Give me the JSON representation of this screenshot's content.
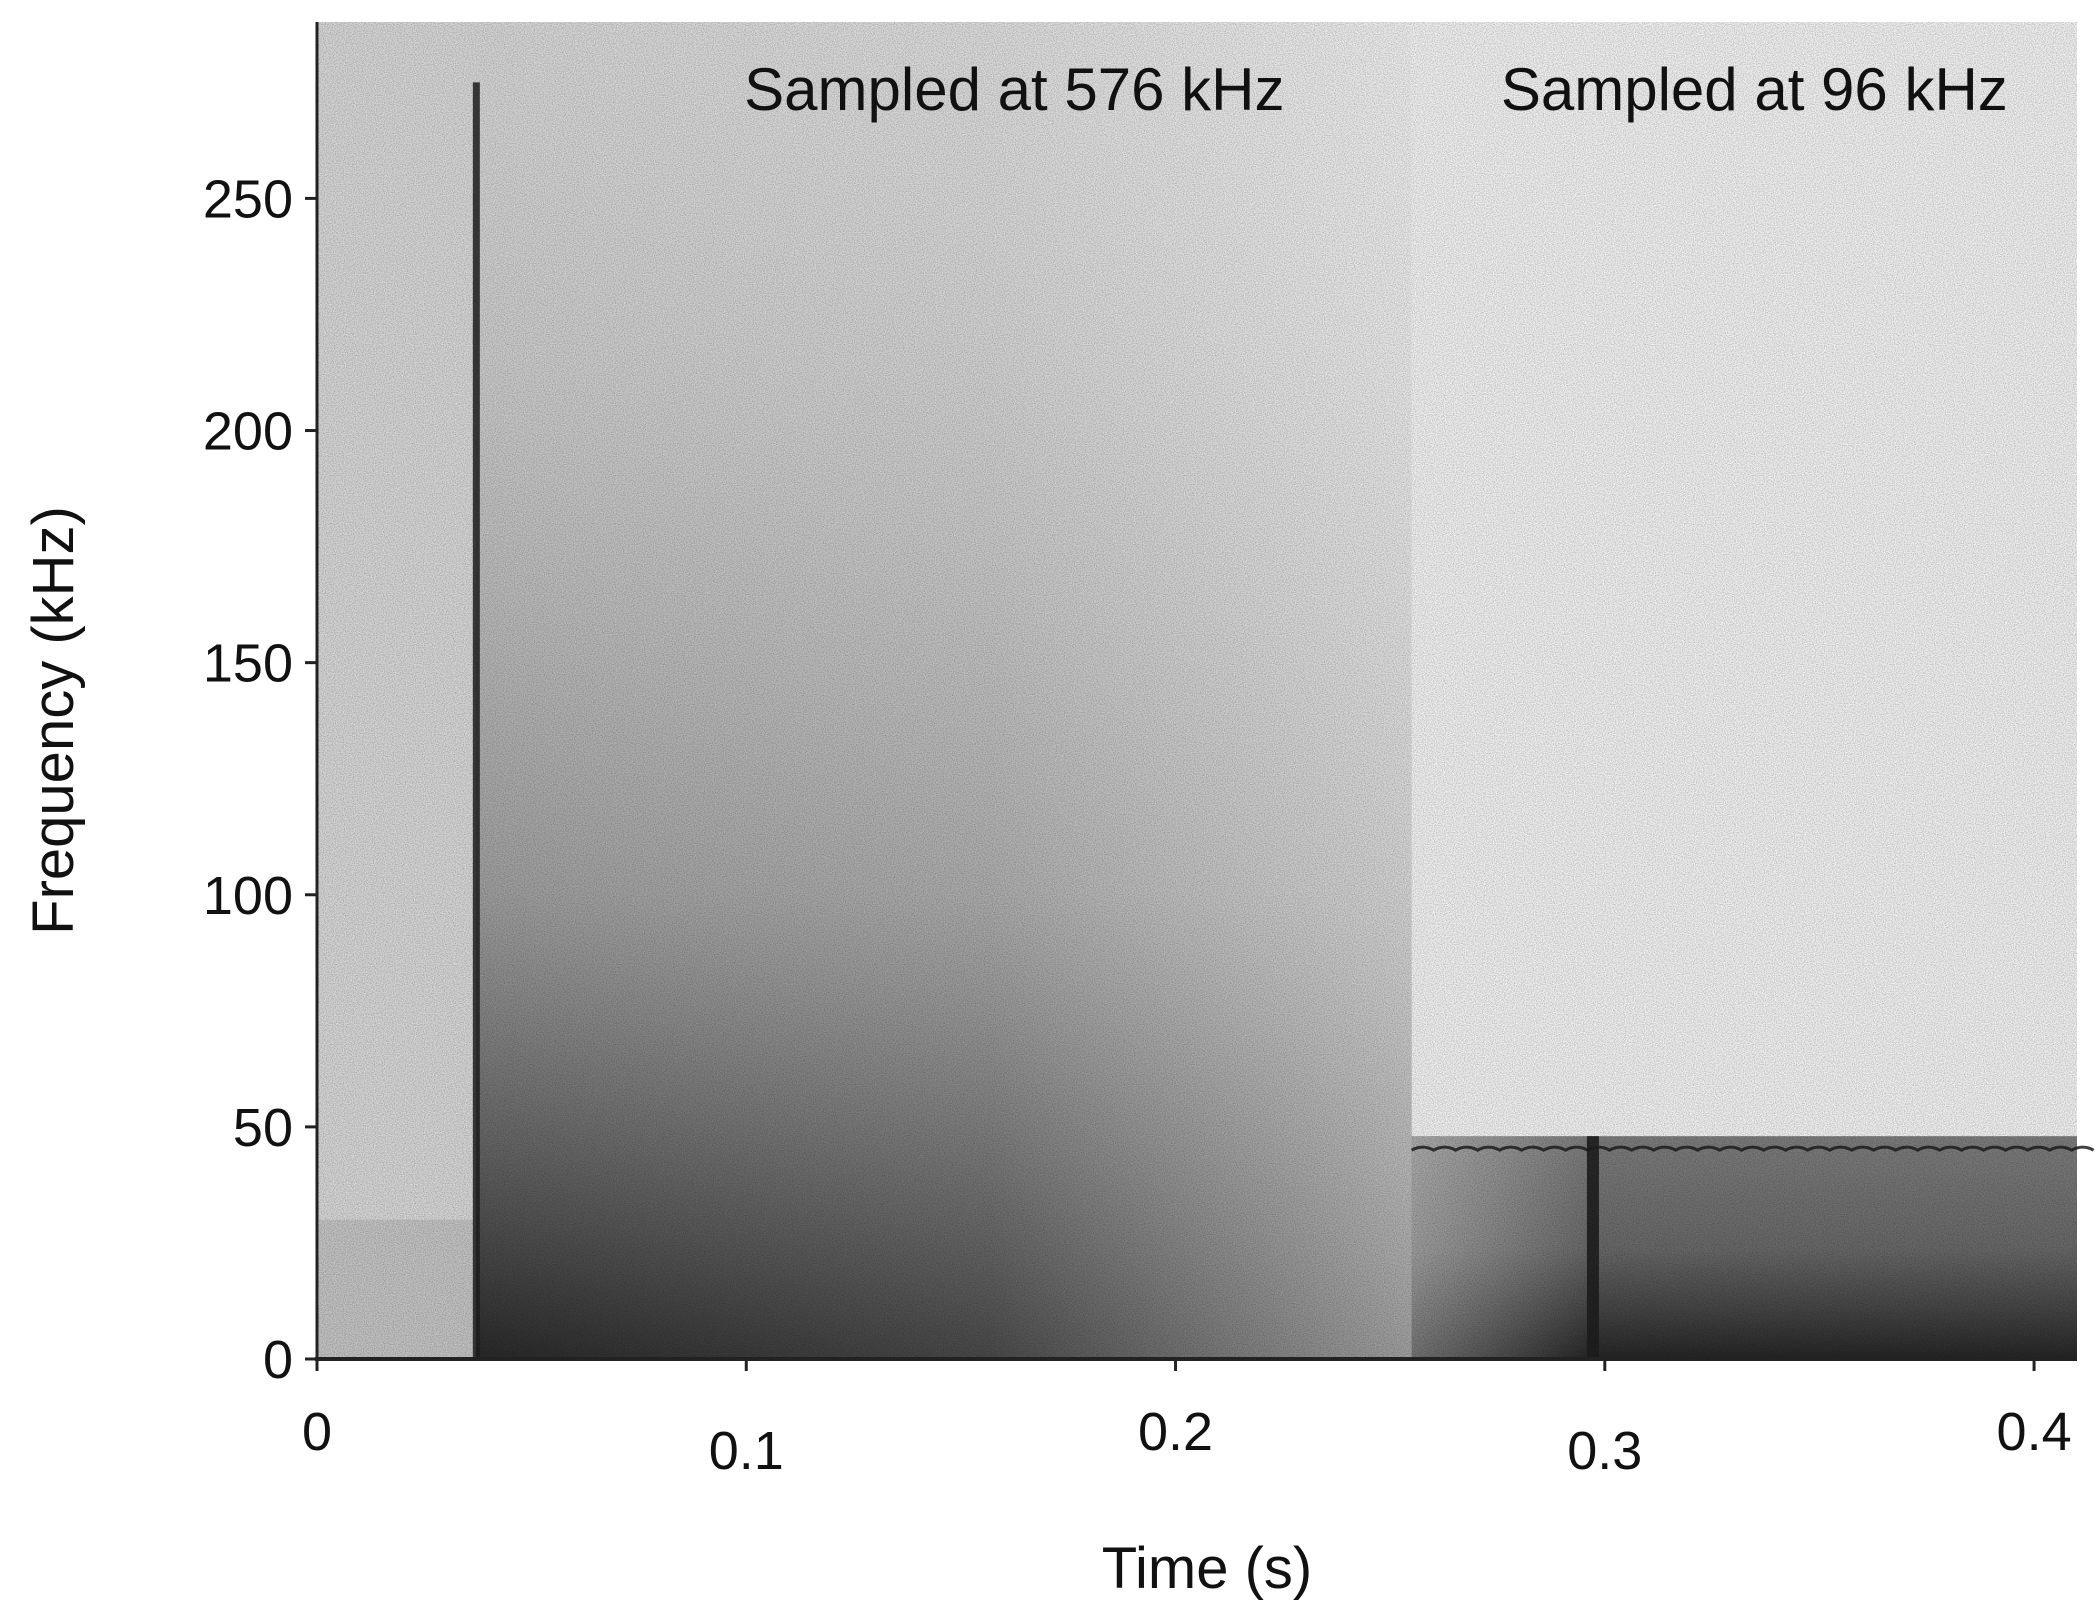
{
  "chart_data": {
    "type": "heatmap",
    "title": "",
    "xlabel": "Time (s)",
    "ylabel": "Frequency (kHz)",
    "xlim": [
      0,
      0.41
    ],
    "ylim": [
      0,
      288
    ],
    "x_ticks": [
      0,
      0.1,
      0.2,
      0.3,
      0.4
    ],
    "x_tick_labels": [
      "0",
      "0.1",
      "0.2",
      "0.3",
      "0.4"
    ],
    "y_ticks": [
      0,
      50,
      100,
      150,
      200,
      250
    ],
    "y_tick_labels": [
      "0",
      "50",
      "100",
      "150",
      "200",
      "250"
    ],
    "grid": false,
    "colormap": "grayscale (darker = higher energy)",
    "colors": {
      "background_noise": "#d4d4d4",
      "high_rate_background": "#d4d4d4",
      "low_rate_background": "#eeeeee",
      "signal_dark": "#1e1e1e"
    },
    "regions": [
      {
        "label": "Sampled at 576 kHz",
        "time_range": [
          0,
          0.255
        ],
        "frequency_range": [
          0,
          288
        ]
      },
      {
        "label": "Sampled at 96 kHz",
        "time_range": [
          0.255,
          0.41
        ],
        "frequency_range": [
          0,
          48
        ]
      }
    ],
    "features": [
      {
        "name": "broadband onset",
        "time": 0.037,
        "frequency_range": [
          0,
          275
        ]
      },
      {
        "name": "broadband onset",
        "time": 0.297,
        "frequency_range": [
          0,
          48
        ]
      },
      {
        "name": "band edge",
        "time_range": [
          0.255,
          0.41
        ],
        "frequency": 48
      }
    ]
  }
}
